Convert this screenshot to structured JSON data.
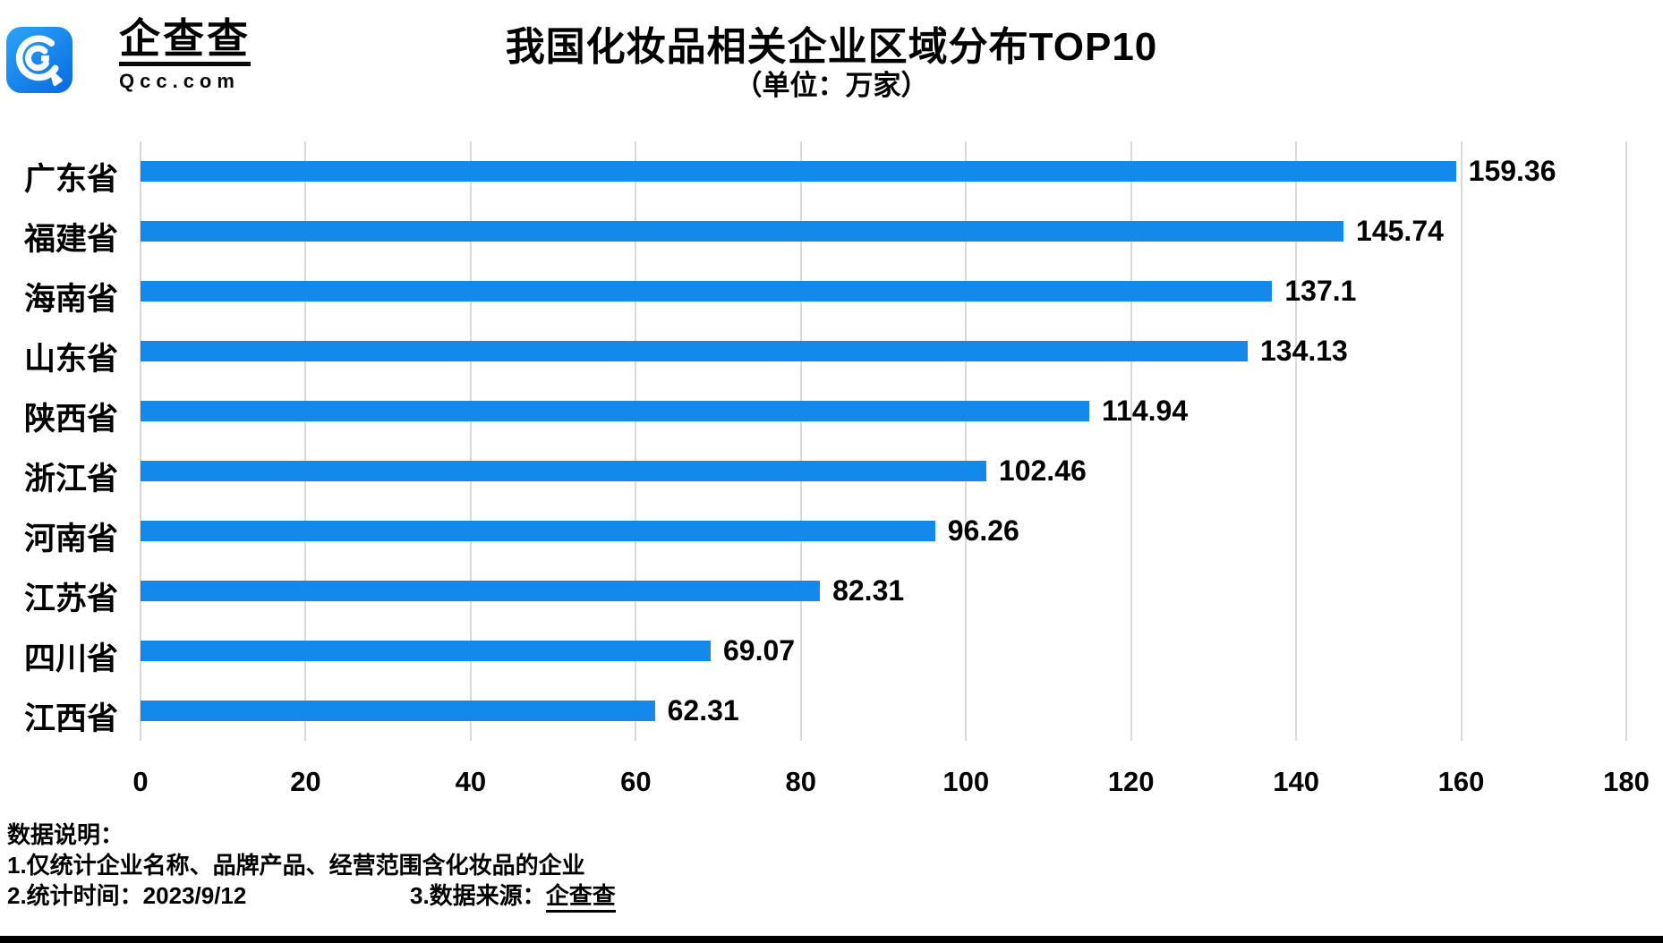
{
  "brand": {
    "wordmark": "企查查",
    "domain": "Qcc.com",
    "logo_icon": "qcc-magnifier-icon",
    "logo_gradient_start": "#2BA5F7",
    "logo_gradient_end": "#0B6FE3"
  },
  "header": {
    "title": "我国化妆品相关企业区域分布TOP10",
    "subtitle": "（单位：万家）"
  },
  "chart_data": {
    "type": "bar",
    "orientation": "horizontal",
    "title": "我国化妆品相关企业区域分布TOP10",
    "unit_label": "（单位：万家）",
    "categories": [
      "广东省",
      "福建省",
      "海南省",
      "山东省",
      "陕西省",
      "浙江省",
      "河南省",
      "江苏省",
      "四川省",
      "江西省"
    ],
    "values": [
      159.36,
      145.74,
      137.1,
      134.13,
      114.94,
      102.46,
      96.26,
      82.31,
      69.07,
      62.31
    ],
    "xlim": [
      0,
      180
    ],
    "xticks": [
      0,
      20,
      40,
      60,
      80,
      100,
      120,
      140,
      160,
      180
    ],
    "grid": "vertical",
    "legend": "none",
    "bar_color": "#1389EC",
    "grid_color": "#D9D9D9",
    "label_color": "#000000"
  },
  "footer": {
    "heading": "数据说明：",
    "note1": "1.仅统计企业名称、品牌产品、经营范围含化妆品的企业",
    "note2": "2.统计时间：2023/9/12",
    "note3_prefix": "3.数据来源：",
    "note3_brand": "企查查"
  }
}
